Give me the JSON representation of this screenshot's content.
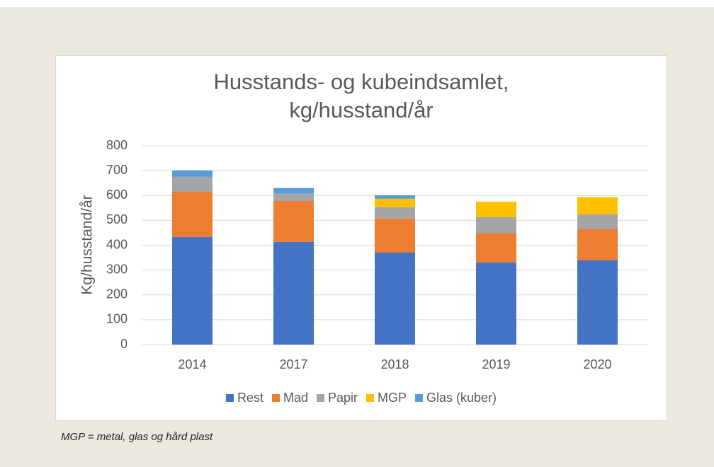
{
  "chart_data": {
    "type": "stacked_bar",
    "title": [
      "Husstands- og kubeindsamlet,",
      "kg/husstand/år"
    ],
    "ylabel": "Kg/husstand/år",
    "categories": [
      "2014",
      "2017",
      "2018",
      "2019",
      "2020"
    ],
    "series": [
      {
        "name": "Rest",
        "color": "#4472c4",
        "values": [
          433,
          413,
          370,
          330,
          339
        ]
      },
      {
        "name": "Mad",
        "color": "#ed7d31",
        "values": [
          182,
          165,
          137,
          117,
          125
        ]
      },
      {
        "name": "Papir",
        "color": "#a5a5a5",
        "values": [
          60,
          29,
          46,
          66,
          60
        ]
      },
      {
        "name": "MGP",
        "color": "#ffc000",
        "values": [
          0,
          0,
          34,
          62,
          69
        ]
      },
      {
        "name": "Glas (kuber)",
        "color": "#5b9bd5",
        "values": [
          26,
          23,
          14,
          0,
          0
        ]
      }
    ],
    "ylim": [
      0,
      800
    ],
    "yticks": [
      0,
      100,
      200,
      300,
      400,
      500,
      600,
      700,
      800
    ],
    "grid": true,
    "legend": "bottom"
  },
  "note": "MGP = metal, glas og hård plast"
}
